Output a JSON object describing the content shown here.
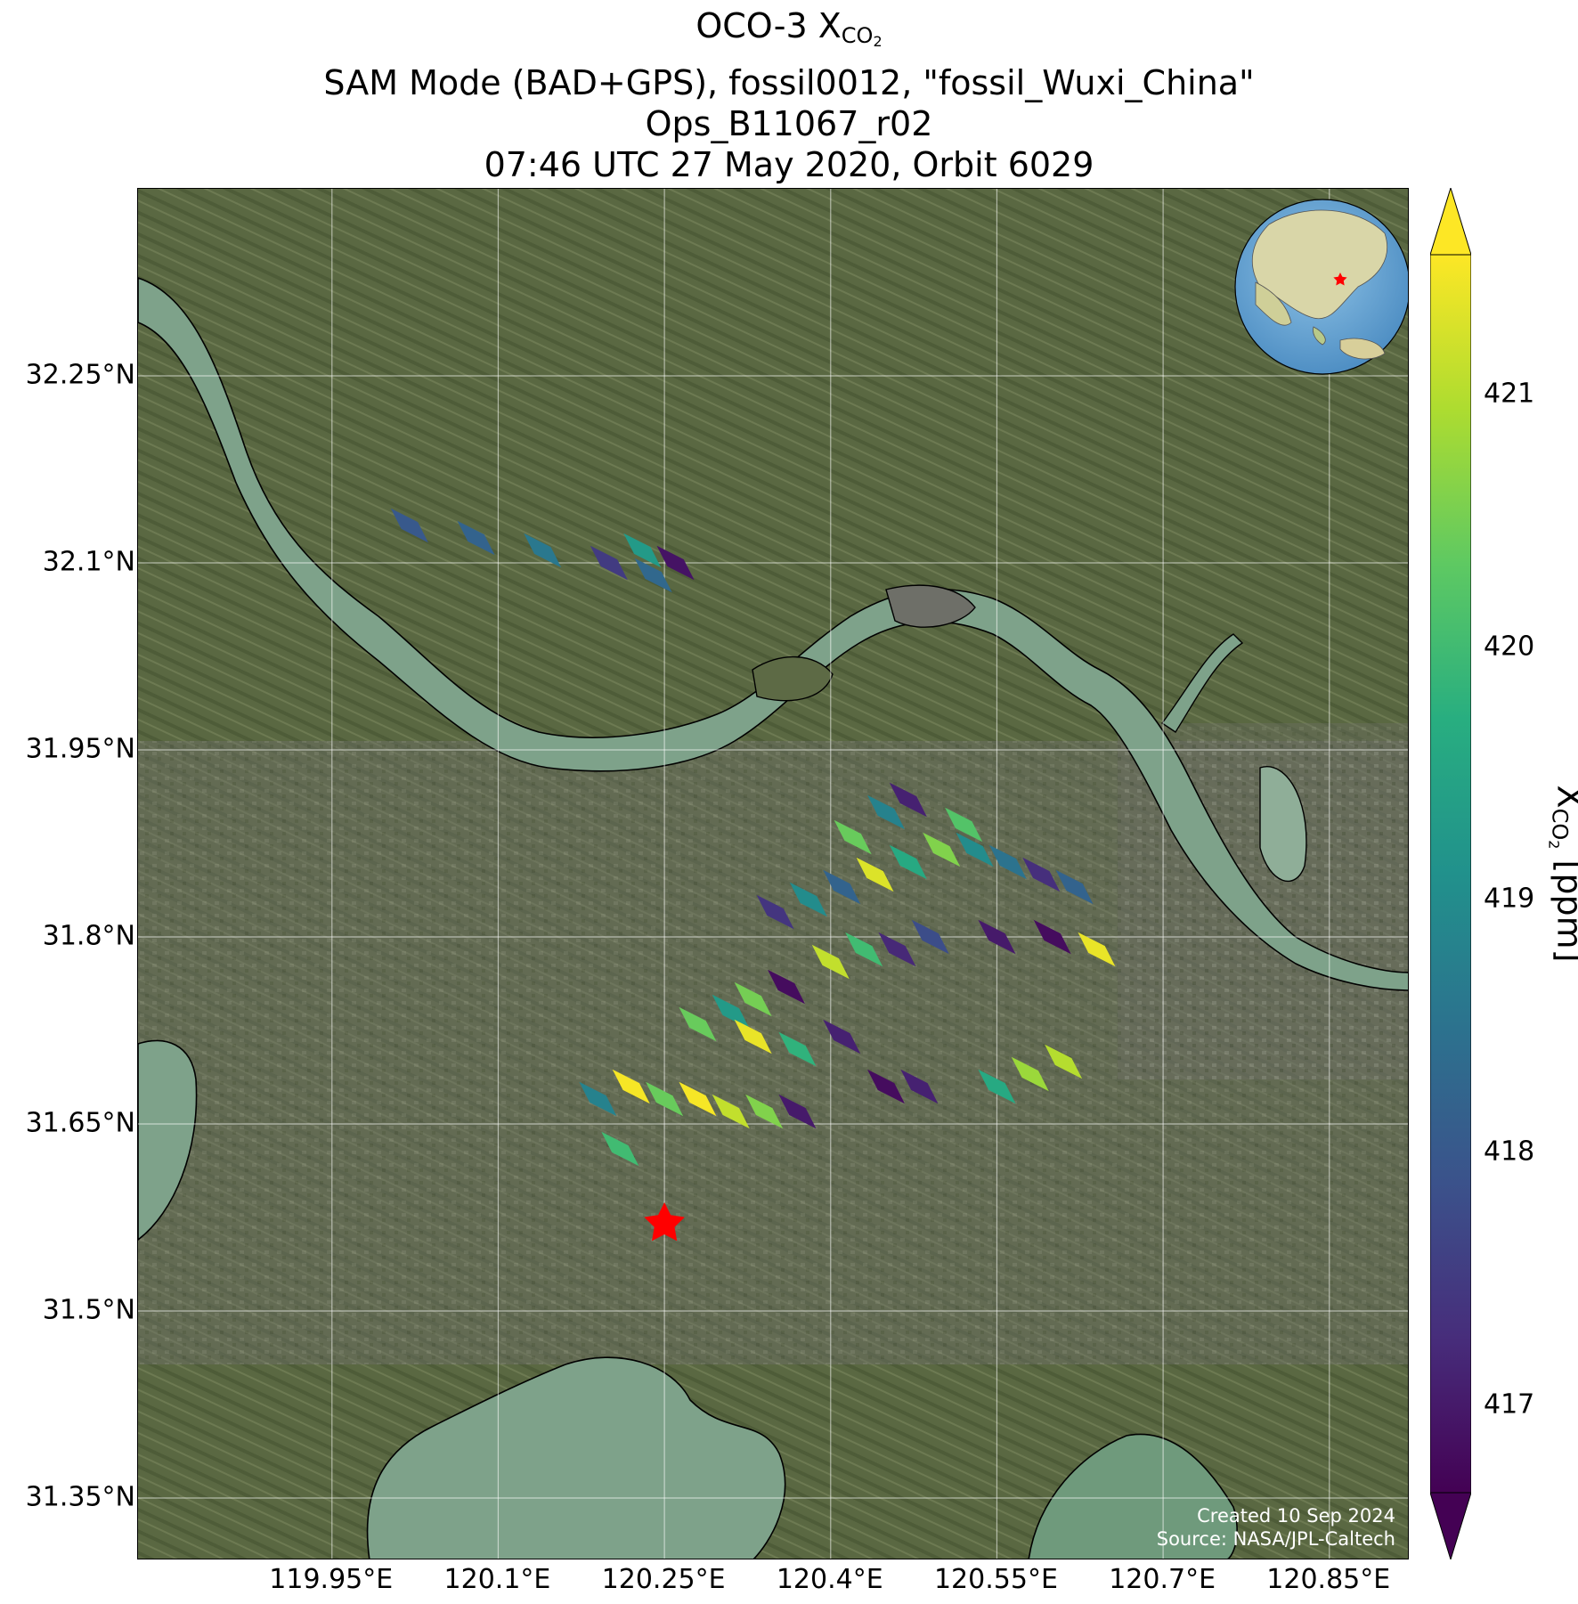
{
  "title": {
    "line1_main": "OCO-3 X",
    "line1_sub": "CO",
    "line1_sub2": "2",
    "line2": "SAM Mode (BAD+GPS), fossil0012, \"fossil_Wuxi_China\"",
    "line3": "Ops_B11067_r02",
    "line4": "07:46 UTC 27 May 2020, Orbit 6029"
  },
  "axes": {
    "lat_ticks": [
      "32.25°N",
      "32.1°N",
      "31.95°N",
      "31.8°N",
      "31.65°N",
      "31.5°N",
      "31.35°N"
    ],
    "lon_ticks": [
      "119.95°E",
      "120.1°E",
      "120.25°E",
      "120.4°E",
      "120.55°E",
      "120.7°E",
      "120.85°E"
    ]
  },
  "colorbar": {
    "ticks": [
      "421",
      "420",
      "419",
      "418",
      "417"
    ],
    "label_main": "X",
    "label_sub": "CO",
    "label_sub2": "2",
    "label_unit": " [ppm]",
    "range": [
      416.65,
      421.55
    ],
    "colormap": "viridis",
    "extend": "both"
  },
  "credit": {
    "created": "Created 10 Sep 2024",
    "source": "Source: NASA/JPL-Caltech"
  },
  "colors": {
    "viridis_dark": "#440154",
    "viridis_blue": "#3b528b",
    "viridis_teal": "#21918c",
    "viridis_green": "#5ec962",
    "viridis_yellow": "#fde725",
    "target_marker": "#ff0000",
    "coastline": "#000000",
    "land": "#5d6a45",
    "water": "#7ea28a"
  },
  "target_marker": {
    "type": "star",
    "lon": 120.25,
    "lat": 31.57
  },
  "inset_globe": {
    "type": "globe",
    "center_region": "East Asia",
    "marker": "red-star"
  },
  "soundings": [
    {
      "lon": 120.02,
      "lat": 32.13,
      "xco2": 418.0
    },
    {
      "lon": 120.08,
      "lat": 32.12,
      "xco2": 418.2
    },
    {
      "lon": 120.14,
      "lat": 32.11,
      "xco2": 418.6
    },
    {
      "lon": 120.2,
      "lat": 32.1,
      "xco2": 417.5
    },
    {
      "lon": 120.23,
      "lat": 32.11,
      "xco2": 419.3
    },
    {
      "lon": 120.26,
      "lat": 32.1,
      "xco2": 416.9
    },
    {
      "lon": 120.24,
      "lat": 32.09,
      "xco2": 418.3
    },
    {
      "lon": 120.35,
      "lat": 31.82,
      "xco2": 417.4
    },
    {
      "lon": 120.38,
      "lat": 31.83,
      "xco2": 419.0
    },
    {
      "lon": 120.41,
      "lat": 31.84,
      "xco2": 418.2
    },
    {
      "lon": 120.44,
      "lat": 31.85,
      "xco2": 421.3
    },
    {
      "lon": 120.47,
      "lat": 31.86,
      "xco2": 419.6
    },
    {
      "lon": 120.5,
      "lat": 31.87,
      "xco2": 420.6
    },
    {
      "lon": 120.53,
      "lat": 31.87,
      "xco2": 419.0
    },
    {
      "lon": 120.56,
      "lat": 31.86,
      "xco2": 418.5
    },
    {
      "lon": 120.59,
      "lat": 31.85,
      "xco2": 417.3
    },
    {
      "lon": 120.62,
      "lat": 31.84,
      "xco2": 418.2
    },
    {
      "lon": 120.52,
      "lat": 31.89,
      "xco2": 420.2
    },
    {
      "lon": 120.47,
      "lat": 31.91,
      "xco2": 417.1
    },
    {
      "lon": 120.42,
      "lat": 31.88,
      "xco2": 420.4
    },
    {
      "lon": 120.45,
      "lat": 31.9,
      "xco2": 418.8
    },
    {
      "lon": 120.49,
      "lat": 31.8,
      "xco2": 417.8
    },
    {
      "lon": 120.46,
      "lat": 31.79,
      "xco2": 417.2
    },
    {
      "lon": 120.43,
      "lat": 31.79,
      "xco2": 420.0
    },
    {
      "lon": 120.4,
      "lat": 31.78,
      "xco2": 421.1
    },
    {
      "lon": 120.55,
      "lat": 31.8,
      "xco2": 417.0
    },
    {
      "lon": 120.6,
      "lat": 31.8,
      "xco2": 416.8
    },
    {
      "lon": 120.64,
      "lat": 31.79,
      "xco2": 421.4
    },
    {
      "lon": 120.36,
      "lat": 31.76,
      "xco2": 416.8
    },
    {
      "lon": 120.33,
      "lat": 31.75,
      "xco2": 420.5
    },
    {
      "lon": 120.31,
      "lat": 31.74,
      "xco2": 419.3
    },
    {
      "lon": 120.28,
      "lat": 31.73,
      "xco2": 420.4
    },
    {
      "lon": 120.33,
      "lat": 31.72,
      "xco2": 421.4
    },
    {
      "lon": 120.37,
      "lat": 31.71,
      "xco2": 419.8
    },
    {
      "lon": 120.41,
      "lat": 31.72,
      "xco2": 417.1
    },
    {
      "lon": 120.19,
      "lat": 31.67,
      "xco2": 418.8
    },
    {
      "lon": 120.22,
      "lat": 31.68,
      "xco2": 421.5
    },
    {
      "lon": 120.25,
      "lat": 31.67,
      "xco2": 420.4
    },
    {
      "lon": 120.28,
      "lat": 31.67,
      "xco2": 421.5
    },
    {
      "lon": 120.31,
      "lat": 31.66,
      "xco2": 421.1
    },
    {
      "lon": 120.34,
      "lat": 31.66,
      "xco2": 420.6
    },
    {
      "lon": 120.37,
      "lat": 31.66,
      "xco2": 417.0
    },
    {
      "lon": 120.45,
      "lat": 31.68,
      "xco2": 416.8
    },
    {
      "lon": 120.48,
      "lat": 31.68,
      "xco2": 417.1
    },
    {
      "lon": 120.55,
      "lat": 31.68,
      "xco2": 419.6
    },
    {
      "lon": 120.58,
      "lat": 31.69,
      "xco2": 420.8
    },
    {
      "lon": 120.61,
      "lat": 31.7,
      "xco2": 421.0
    },
    {
      "lon": 120.21,
      "lat": 31.63,
      "xco2": 420.0
    }
  ]
}
